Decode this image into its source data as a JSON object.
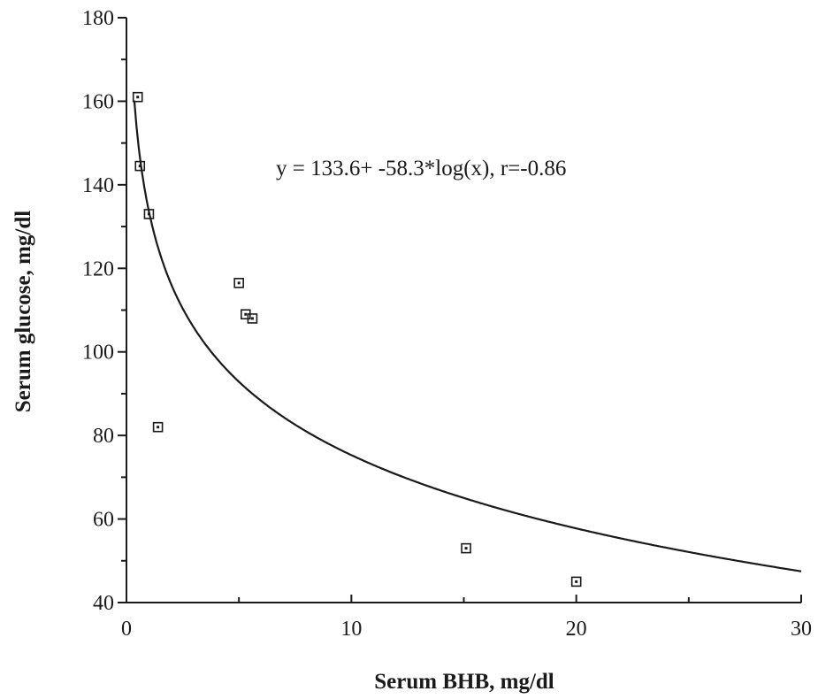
{
  "chart_data": {
    "type": "scatter",
    "xlabel": "Serum  BHB,  mg/dl",
    "ylabel": "Serum  glucose,  mg/dl",
    "xlim": [
      0,
      30
    ],
    "ylim": [
      40,
      180
    ],
    "x_ticks": [
      0,
      10,
      20,
      30
    ],
    "y_ticks": [
      40,
      60,
      80,
      100,
      120,
      140,
      160,
      180
    ],
    "grid": false,
    "legend": "none",
    "annotation": "y = 133.6+ -58.3*log(x), r=-0.86",
    "points": [
      {
        "x": 0.5,
        "y": 161
      },
      {
        "x": 0.6,
        "y": 144.5
      },
      {
        "x": 1.0,
        "y": 133
      },
      {
        "x": 1.4,
        "y": 82
      },
      {
        "x": 5.0,
        "y": 116.5
      },
      {
        "x": 5.3,
        "y": 109
      },
      {
        "x": 5.6,
        "y": 108
      },
      {
        "x": 15.1,
        "y": 53
      },
      {
        "x": 20.0,
        "y": 45
      }
    ],
    "fit": {
      "type": "log10",
      "intercept": 133.6,
      "slope": -58.3,
      "r": -0.86
    }
  }
}
